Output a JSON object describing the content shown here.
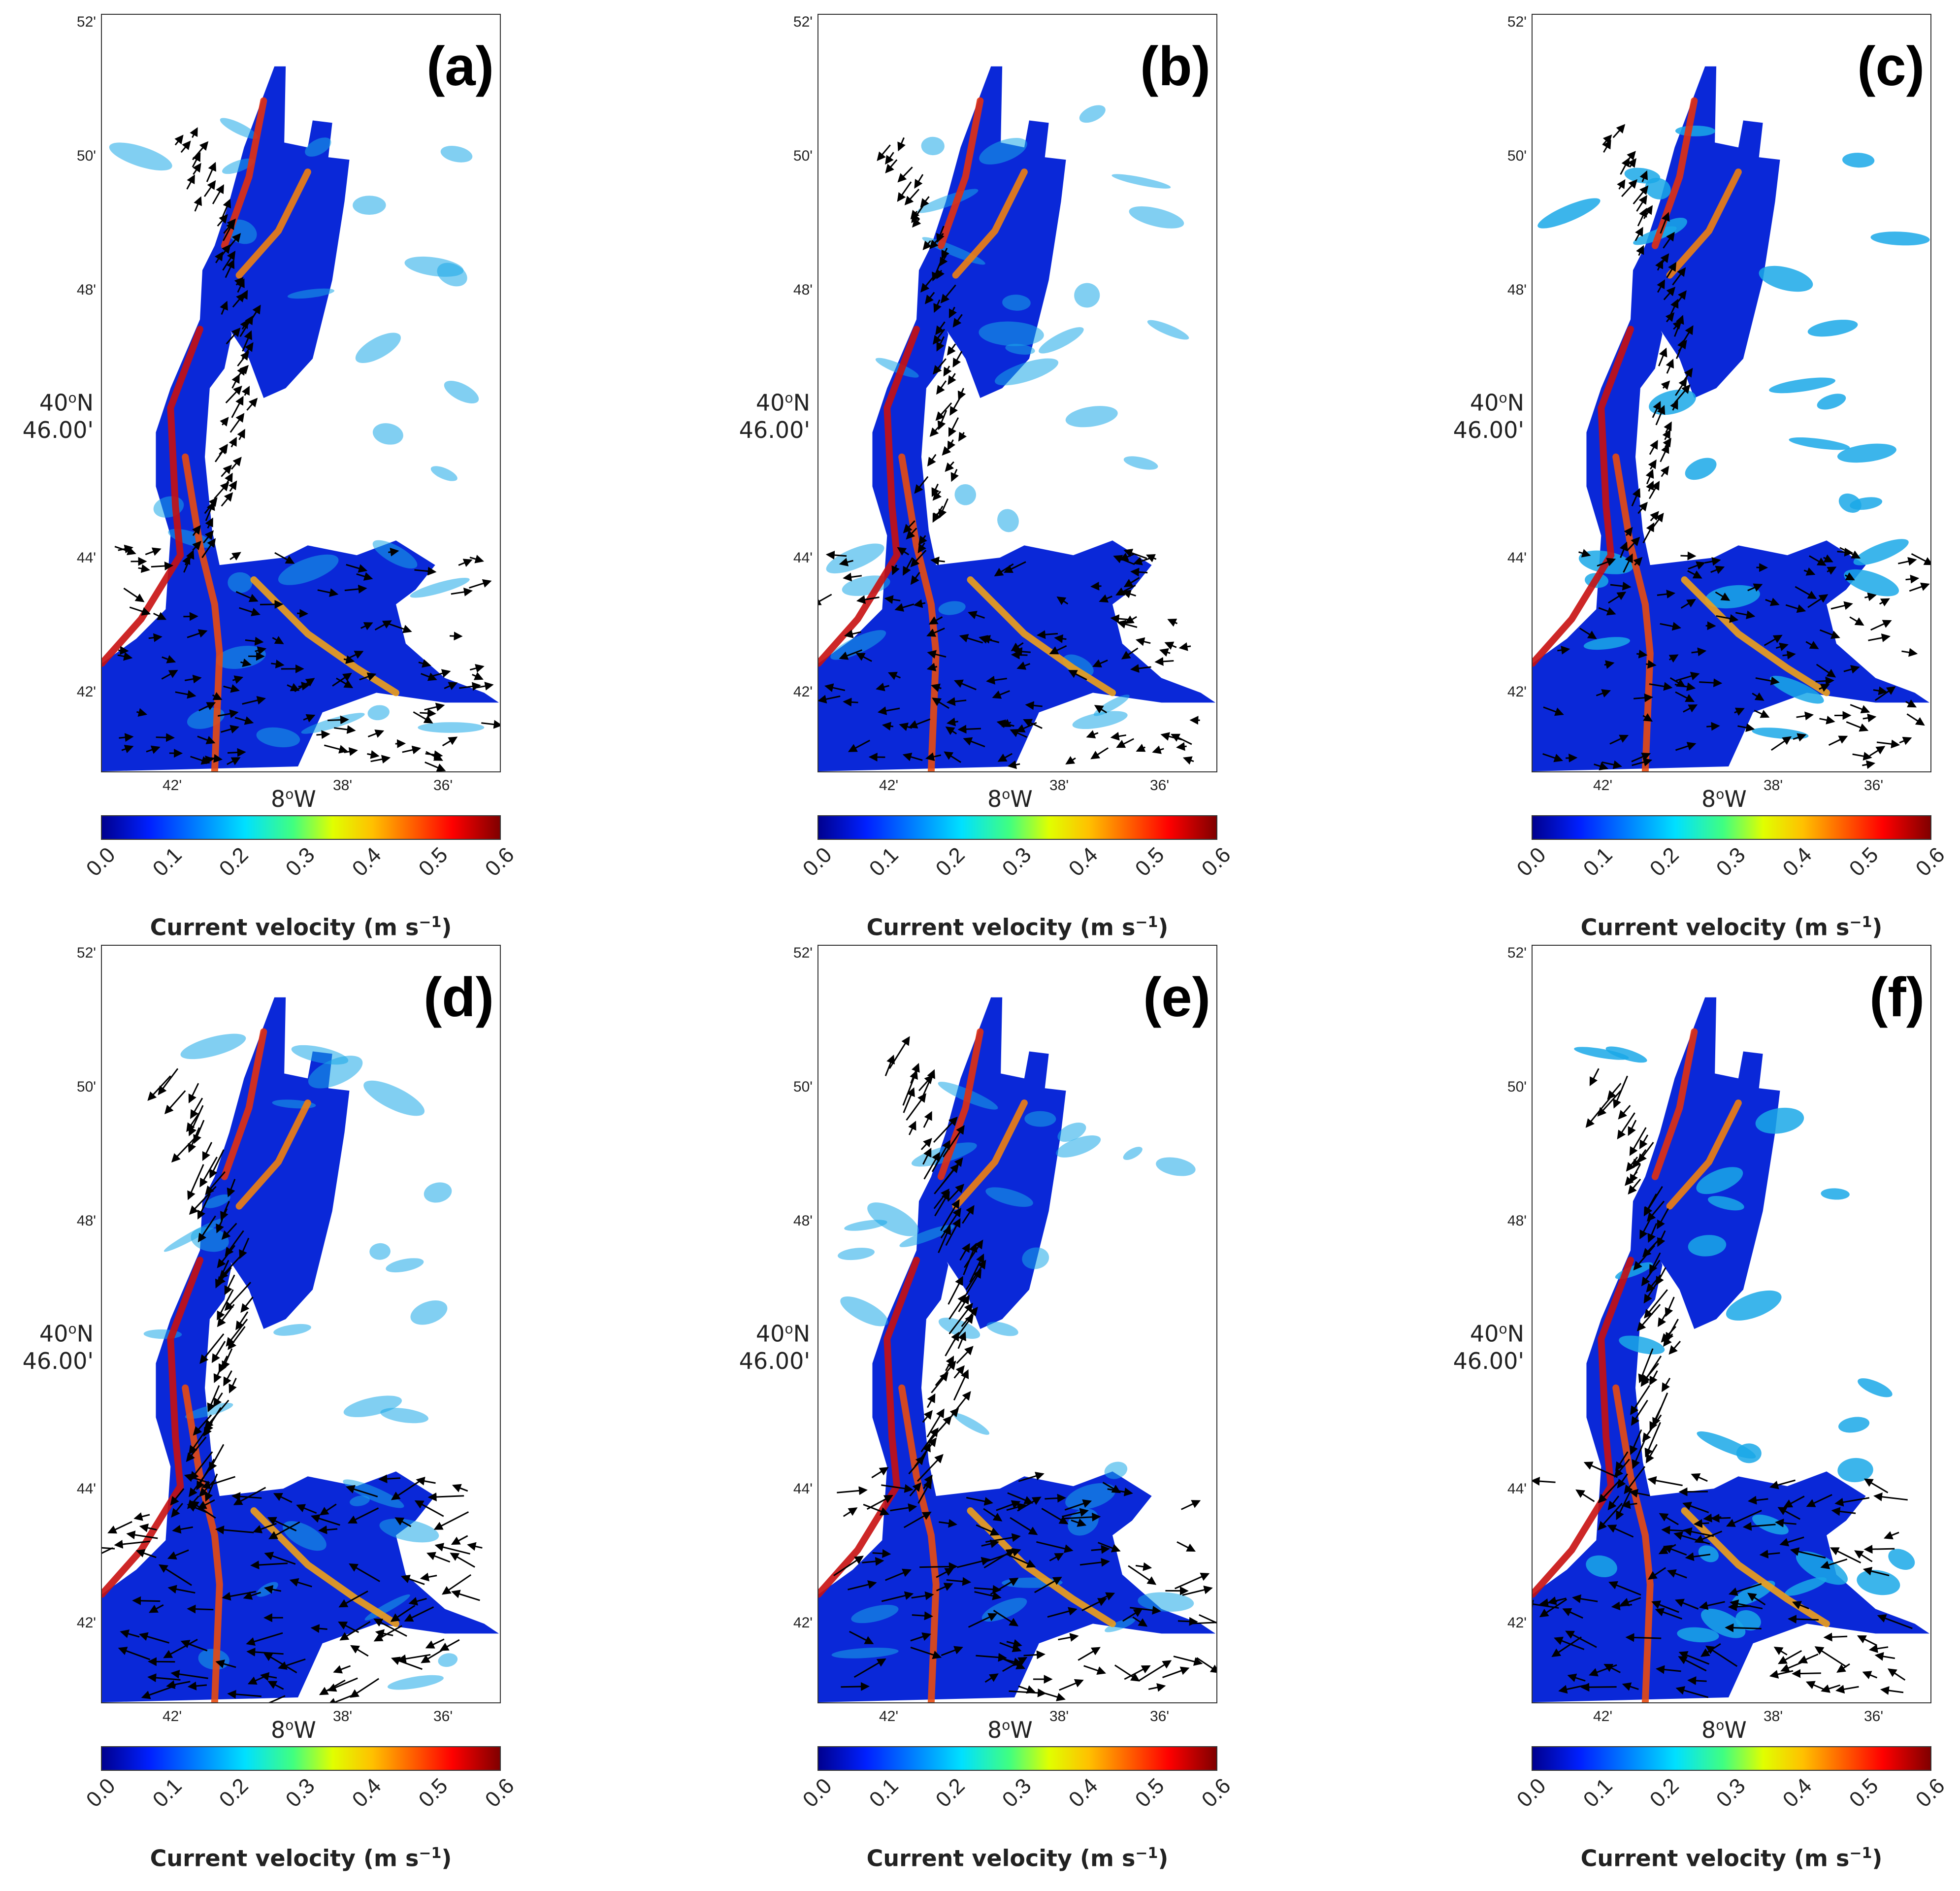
{
  "panels": [
    {
      "tag": "(a)",
      "variant": 0
    },
    {
      "tag": "(b)",
      "variant": 1
    },
    {
      "tag": "(c)",
      "variant": 2
    },
    {
      "tag": "(d)",
      "variant": 3
    },
    {
      "tag": "(e)",
      "variant": 4
    },
    {
      "tag": "(f)",
      "variant": 5
    }
  ],
  "axes": {
    "lat_ticks": [
      "52'",
      "50'",
      "48'",
      "44'",
      "42'"
    ],
    "lat_center_line1": "40",
    "lat_center_deg": "o",
    "lat_center_hemisphere": "N",
    "lat_center_line2": "46.00'",
    "lon_ticks": [
      "42'",
      "38'",
      "36'"
    ],
    "lon_center_num": "8",
    "lon_center_deg": "o",
    "lon_center_hemisphere": "W"
  },
  "colorbar": {
    "ticks": [
      "0.0",
      "0.1",
      "0.2",
      "0.3",
      "0.4",
      "0.5",
      "0.6"
    ],
    "range": [
      0.0,
      0.6
    ],
    "label": "Current velocity (m s",
    "label_exp": "−1",
    "label_end": ")",
    "colormap": "jet"
  },
  "colors": {
    "water_low": "#0a28d8",
    "water_mid": "#1aa8e8",
    "channel_high": "#e83a10",
    "channel_mid": "#f0c020",
    "arrow": "#000000"
  }
}
